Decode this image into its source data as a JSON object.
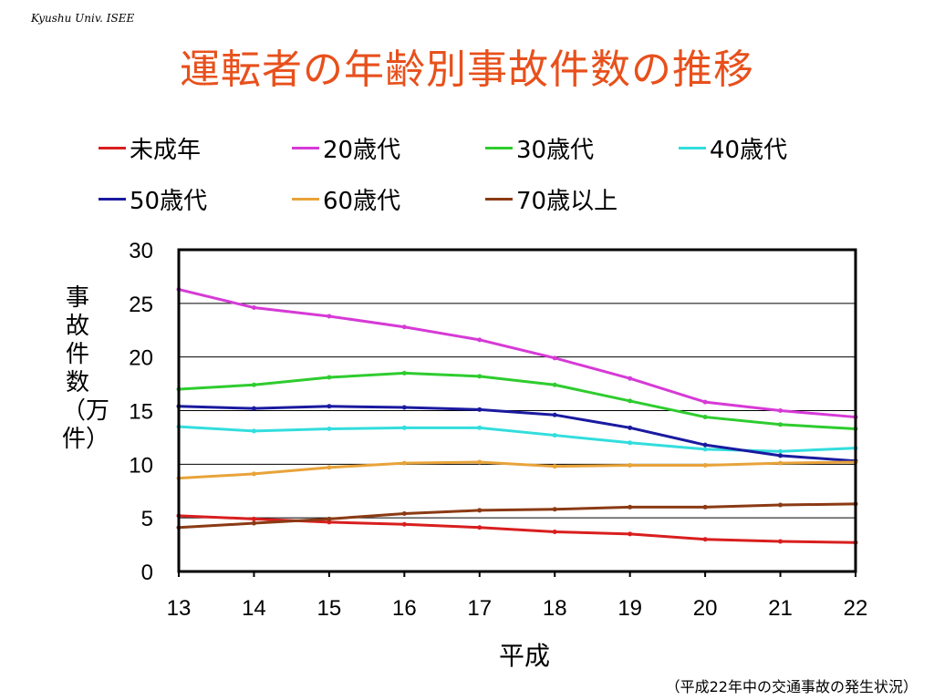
{
  "header": {
    "corner_text": "Kyushu Univ. ISEE",
    "title": "運転者の年齢別事故件数の推移"
  },
  "footer": {
    "source": "（平成22年中の交通事故の発生状況）"
  },
  "chart_data": {
    "type": "line",
    "title": "運転者の年齢別事故件数の推移",
    "xlabel": "平成",
    "ylabel": "事故件数（万件）",
    "x": [
      13,
      14,
      15,
      16,
      17,
      18,
      19,
      20,
      21,
      22
    ],
    "ylim": [
      0,
      30
    ],
    "yticks": [
      0,
      5,
      10,
      15,
      20,
      25,
      30
    ],
    "grid": true,
    "legend_position": "top",
    "series": [
      {
        "name": "未成年",
        "color": "#d91e1e",
        "values": [
          5.2,
          4.9,
          4.6,
          4.4,
          4.1,
          3.7,
          3.5,
          3.0,
          2.8,
          2.7
        ]
      },
      {
        "name": "20歳代",
        "color": "#d63ad6",
        "values": [
          26.3,
          24.6,
          23.8,
          22.8,
          21.6,
          19.9,
          18.0,
          15.8,
          15.0,
          14.4
        ]
      },
      {
        "name": "30歳代",
        "color": "#2ecc2e",
        "values": [
          17.0,
          17.4,
          18.1,
          18.5,
          18.2,
          17.4,
          15.9,
          14.4,
          13.7,
          13.3
        ]
      },
      {
        "name": "40歳代",
        "color": "#33dddd",
        "values": [
          13.5,
          13.1,
          13.3,
          13.4,
          13.4,
          12.7,
          12.0,
          11.4,
          11.2,
          11.5
        ]
      },
      {
        "name": "50歳代",
        "color": "#1a1aa0",
        "values": [
          15.4,
          15.2,
          15.4,
          15.3,
          15.1,
          14.6,
          13.4,
          11.8,
          10.8,
          10.3
        ]
      },
      {
        "name": "60歳代",
        "color": "#e8a33a",
        "values": [
          8.7,
          9.1,
          9.7,
          10.1,
          10.2,
          9.8,
          9.9,
          9.9,
          10.1,
          10.2
        ]
      },
      {
        "name": "70歳以上",
        "color": "#8b3a14",
        "values": [
          4.1,
          4.5,
          4.9,
          5.4,
          5.7,
          5.8,
          6.0,
          6.0,
          6.2,
          6.3
        ]
      }
    ]
  }
}
